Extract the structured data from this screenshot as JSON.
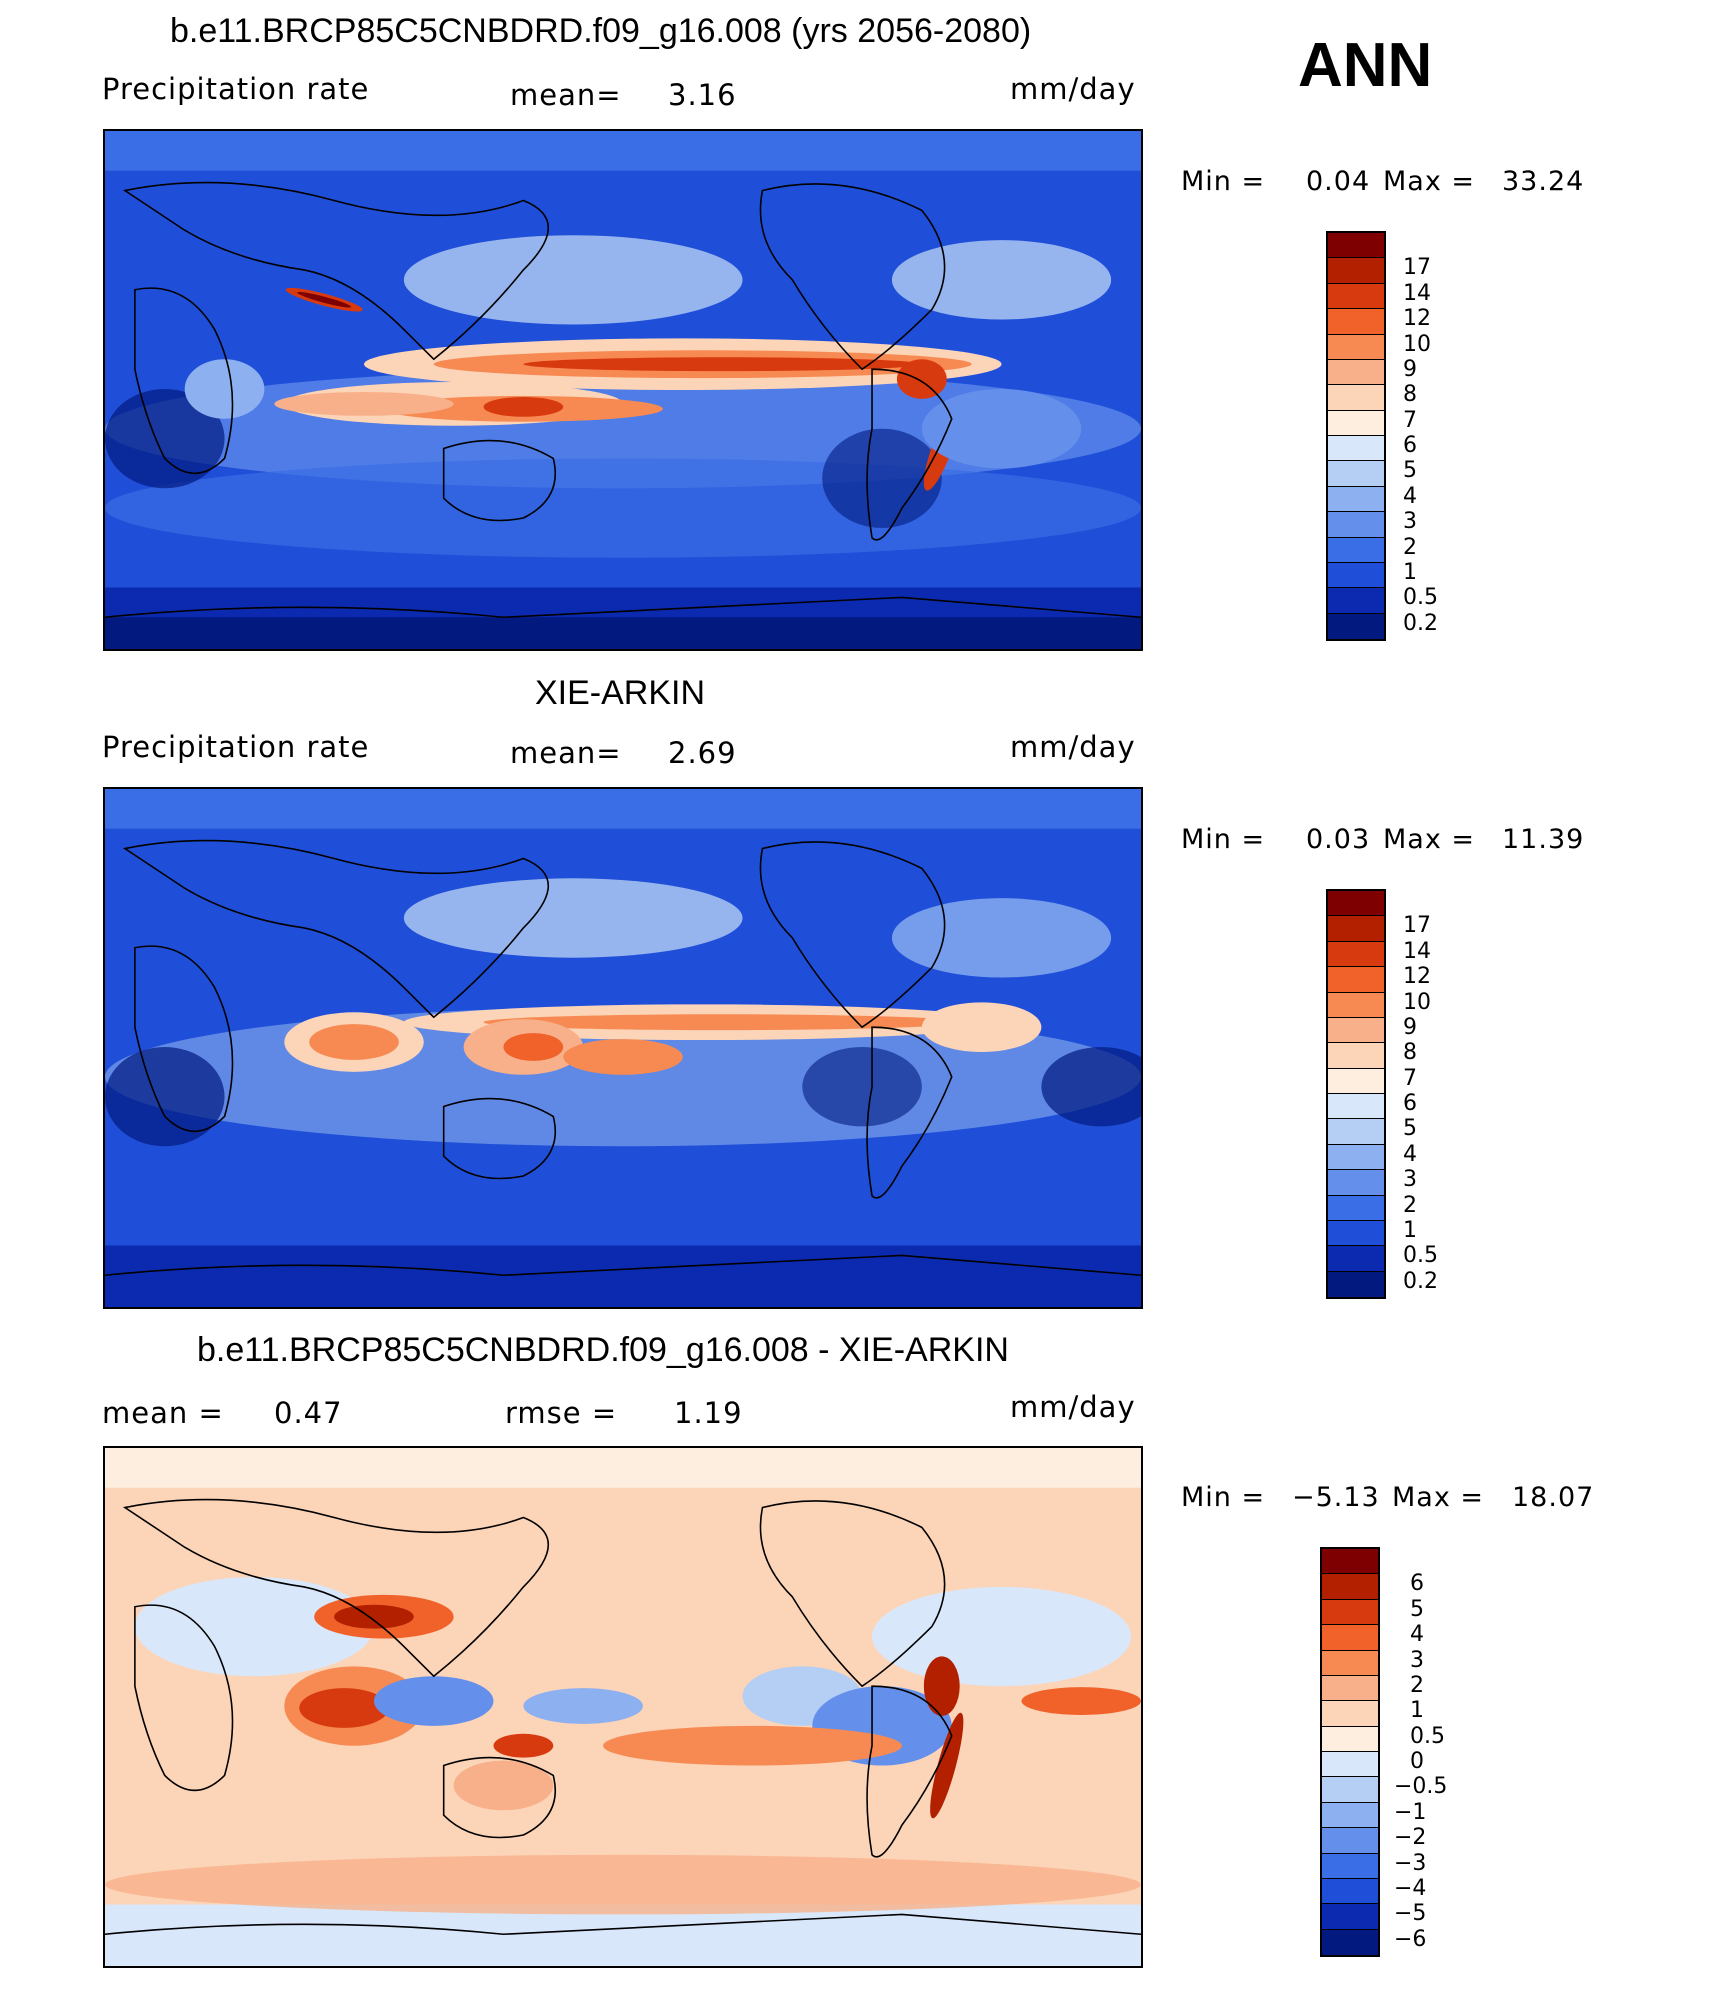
{
  "season": "ANN",
  "units": "mm/day",
  "panels": [
    {
      "title": "b.e11.BRCP85C5CNBDRD.f09_g16.008 (yrs 2056-2080)",
      "left_label": "Precipitation  rate",
      "mean_label": "mean=",
      "mean_value": "3.16",
      "min_label": "Min  =",
      "min_value": "0.04",
      "max_label": "Max  =",
      "max_value": "33.24",
      "colorbar_labels": [
        "17",
        "14",
        "12",
        "10",
        "9",
        "8",
        "7",
        "6",
        "5",
        "4",
        "3",
        "2",
        "1",
        "0.5",
        "0.2"
      ]
    },
    {
      "title": "XIE-ARKIN",
      "left_label": "Precipitation  rate",
      "mean_label": "mean=",
      "mean_value": "2.69",
      "min_label": "Min  =",
      "min_value": "0.03",
      "max_label": "Max  =",
      "max_value": "11.39",
      "colorbar_labels": [
        "17",
        "14",
        "12",
        "10",
        "9",
        "8",
        "7",
        "6",
        "5",
        "4",
        "3",
        "2",
        "1",
        "0.5",
        "0.2"
      ]
    },
    {
      "title": "b.e11.BRCP85C5CNBDRD.f09_g16.008 - XIE-ARKIN",
      "mean_label": "mean  =",
      "mean_value": "0.47",
      "rmse_label": "rmse  =",
      "rmse_value": "1.19",
      "min_label": "Min  =",
      "min_value": "−5.13",
      "max_label": "Max  =",
      "max_value": "18.07",
      "colorbar_labels": [
        "6",
        "5",
        "4",
        "3",
        "2",
        "1",
        "0.5",
        "0",
        "−0.5",
        "−1",
        "−2",
        "−3",
        "−4",
        "−5",
        "−6"
      ]
    }
  ],
  "colors": {
    "precip_scale": [
      "#7f0000",
      "#b22000",
      "#d83a10",
      "#f0622a",
      "#f78a52",
      "#f8b08a",
      "#fcd4b8",
      "#fdeee0",
      "#d8e8fa",
      "#b4cef4",
      "#8cb0f0",
      "#6490ec",
      "#3a6ee6",
      "#1f4fd8",
      "#0b2ab0",
      "#021a80"
    ],
    "diff_scale": [
      "#7f0000",
      "#b22000",
      "#d83a10",
      "#f0622a",
      "#f78a52",
      "#f8b08a",
      "#fcd4b8",
      "#fdeee0",
      "#d8e8fa",
      "#b4cef4",
      "#8cb0f0",
      "#6490ec",
      "#3a6ee6",
      "#1f4fd8",
      "#0b2ab0",
      "#021a80"
    ],
    "land_outline": "#000000"
  }
}
